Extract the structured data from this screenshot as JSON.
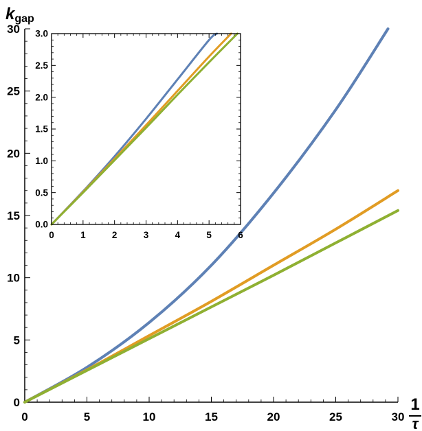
{
  "chart_data": [
    {
      "type": "line",
      "title": "",
      "ylabel": "k",
      "ylabel_subscript": "gap",
      "xlabel_numerator": "1",
      "xlabel_denominator": "τ",
      "xlim": [
        0,
        30
      ],
      "ylim": [
        0,
        30
      ],
      "xticks": [
        0,
        5,
        10,
        15,
        20,
        25,
        30
      ],
      "xtick_labels": [
        "0",
        "5",
        "10",
        "15",
        "20",
        "25",
        "30"
      ],
      "yticks": [
        0,
        5,
        10,
        15,
        20,
        25,
        30
      ],
      "ytick_labels": [
        "0",
        "5",
        "10",
        "15",
        "20",
        "25",
        "30"
      ],
      "grid": false,
      "legend": "none",
      "series": [
        {
          "color": "#5E81B5",
          "x": [
            0,
            5,
            10,
            15,
            20,
            25,
            29.2
          ],
          "y": [
            0,
            2.8,
            6.4,
            11.0,
            16.8,
            23.5,
            30.0
          ]
        },
        {
          "color": "#E19C24",
          "x": [
            0,
            5,
            10,
            15,
            20,
            25,
            30
          ],
          "y": [
            0,
            2.6,
            5.35,
            8.1,
            11.0,
            13.9,
            17.0
          ]
        },
        {
          "color": "#8FB032",
          "x": [
            0,
            5,
            10,
            15,
            20,
            25,
            30
          ],
          "y": [
            0,
            2.55,
            5.1,
            7.65,
            10.2,
            12.8,
            15.4
          ]
        }
      ]
    },
    {
      "type": "line",
      "title": "",
      "role": "inset",
      "xlim": [
        0,
        6
      ],
      "ylim": [
        0,
        3
      ],
      "xticks": [
        0,
        1,
        2,
        3,
        4,
        5,
        6
      ],
      "xtick_labels": [
        "0",
        "1",
        "2",
        "3",
        "4",
        "5",
        "6"
      ],
      "yticks": [
        0,
        0.5,
        1.0,
        1.5,
        2.0,
        2.5,
        3.0
      ],
      "ytick_labels": [
        "0.0",
        "0.5",
        "1.0",
        "1.5",
        "2.0",
        "2.5",
        "3.0"
      ],
      "grid": false,
      "legend": "none",
      "series": [
        {
          "color": "#5E81B5",
          "x": [
            0,
            1,
            2,
            3,
            4,
            5,
            5.25
          ],
          "y": [
            0,
            0.52,
            1.07,
            1.66,
            2.28,
            2.9,
            3.0
          ]
        },
        {
          "color": "#E19C24",
          "x": [
            0,
            1,
            2,
            3,
            4,
            5,
            5.7
          ],
          "y": [
            0,
            0.51,
            1.03,
            1.56,
            2.1,
            2.64,
            3.0
          ]
        },
        {
          "color": "#8FB032",
          "x": [
            0,
            1,
            2,
            3,
            4,
            5,
            5.9
          ],
          "y": [
            0,
            0.5,
            1.01,
            1.52,
            2.04,
            2.55,
            3.0
          ]
        }
      ]
    }
  ]
}
